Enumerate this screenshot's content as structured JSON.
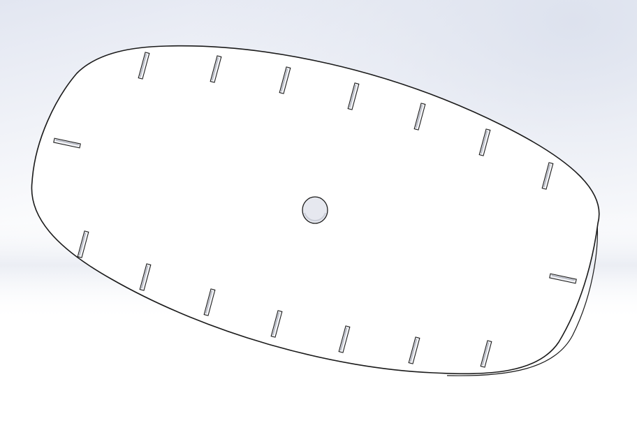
{
  "viewport": {
    "background_top": "#e2e6f1",
    "background_mid": "#ffffff",
    "background_bottom": "#ffffff"
  },
  "part": {
    "face_color": "#ffffff",
    "edge_color": "#1a1a1a",
    "hole_fill": "#e6e8ef",
    "slot_fill": "#f4f5f8",
    "slot_shade": "#b9bcc6"
  }
}
